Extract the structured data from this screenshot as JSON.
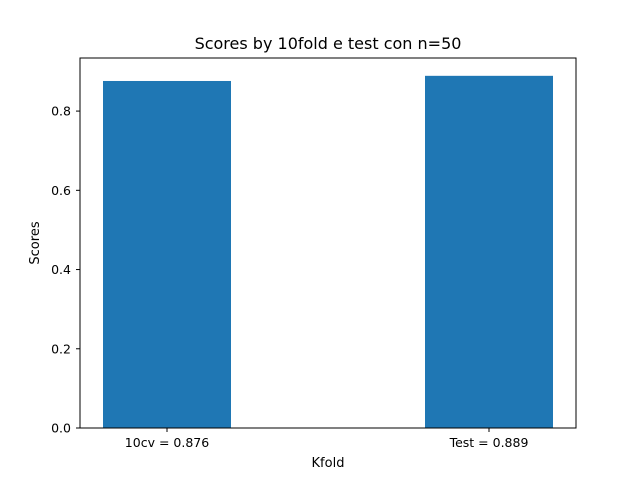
{
  "chart_data": {
    "type": "bar",
    "title": "Scores by 10fold e test con n=50",
    "xlabel": "Kfold",
    "ylabel": "Scores",
    "categories": [
      "10cv = 0.876",
      "Test = 0.889"
    ],
    "values": [
      0.876,
      0.889
    ],
    "ylim": [
      0,
      0.934
    ],
    "yticks": [
      "0.0",
      "0.2",
      "0.4",
      "0.6",
      "0.8"
    ],
    "bar_color": "#1f77b4",
    "grid": false,
    "legend": "none"
  }
}
